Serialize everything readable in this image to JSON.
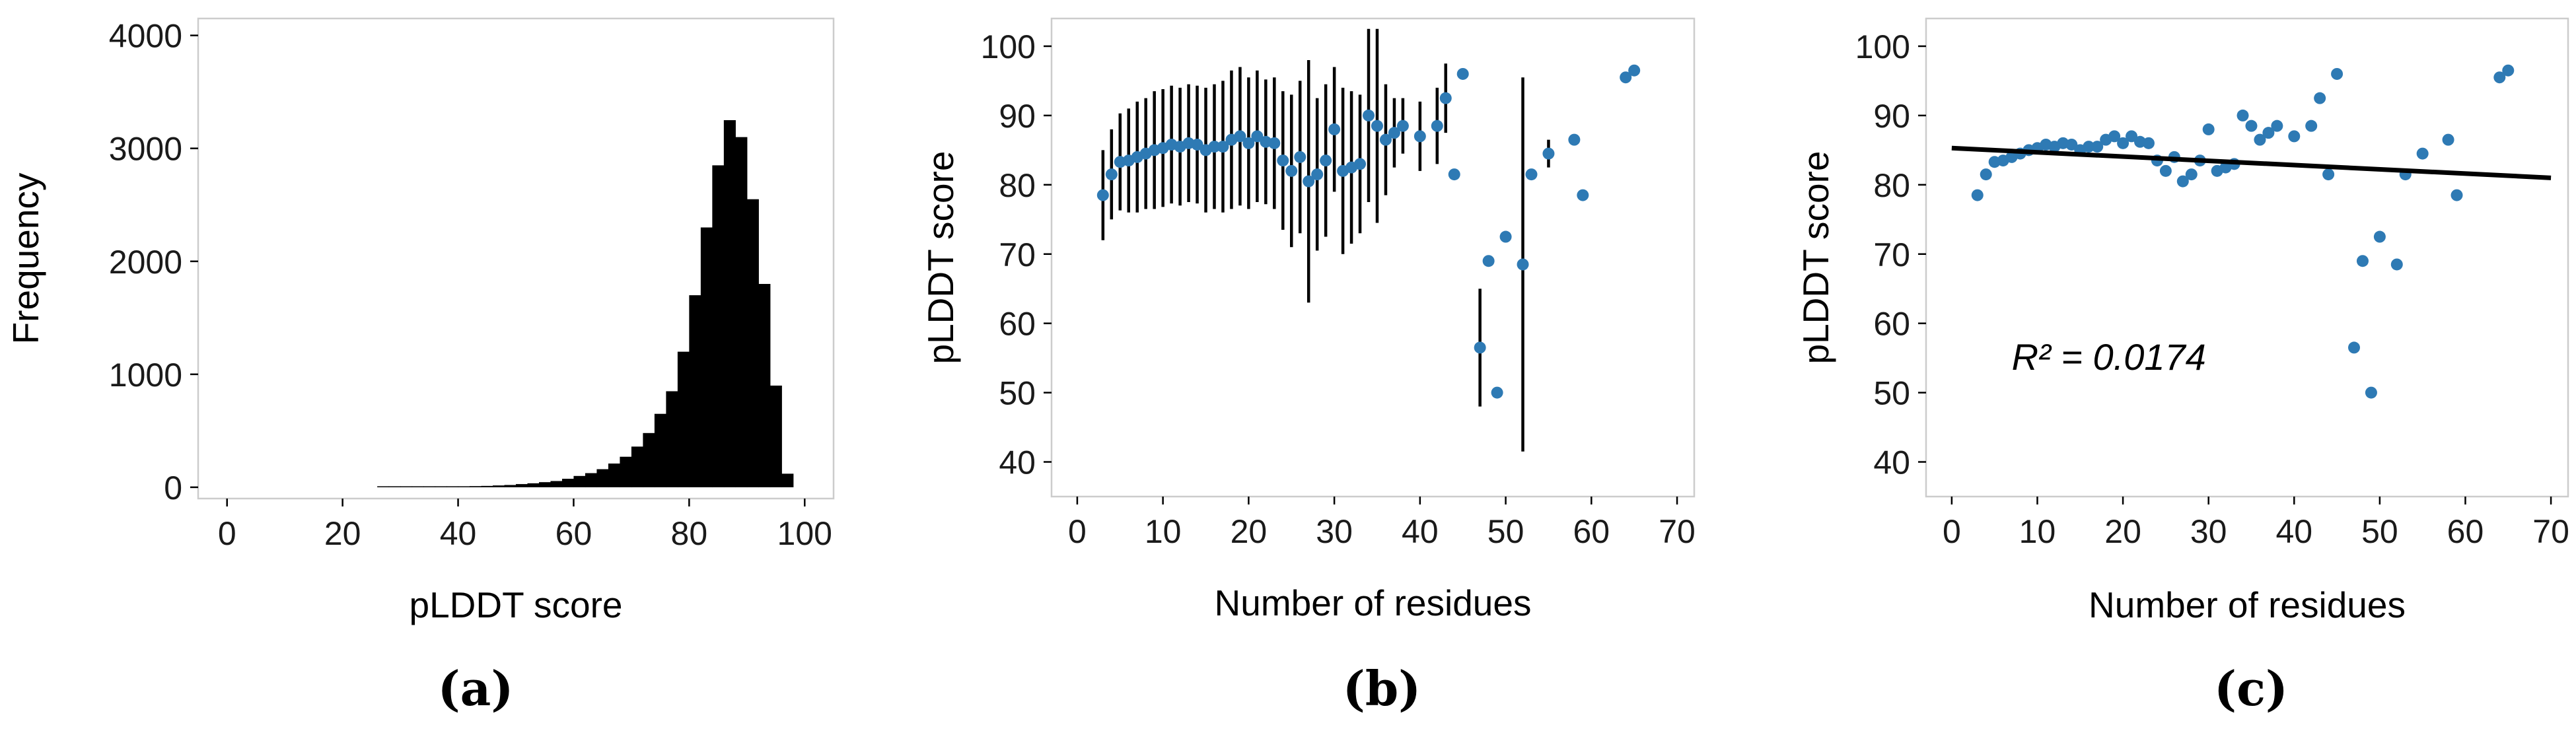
{
  "chart_data": [
    {
      "id": "a",
      "type": "bar",
      "subtype": "histogram",
      "caption": "(a)",
      "xlabel": "pLDDT score",
      "ylabel": "Frequency",
      "xlim": [
        -5,
        105
      ],
      "ylim": [
        -100,
        4150
      ],
      "xticks": [
        0,
        20,
        40,
        60,
        80,
        100
      ],
      "yticks": [
        0,
        1000,
        2000,
        3000,
        4000
      ],
      "bin_width": 2,
      "bins_start": [
        26,
        28,
        30,
        32,
        34,
        36,
        38,
        40,
        42,
        44,
        46,
        48,
        50,
        52,
        54,
        56,
        58,
        60,
        62,
        64,
        66,
        68,
        70,
        72,
        74,
        76,
        78,
        80,
        82,
        84,
        86,
        88,
        90,
        92,
        94,
        96
      ],
      "counts": [
        2,
        3,
        3,
        4,
        4,
        5,
        6,
        8,
        10,
        12,
        16,
        20,
        28,
        35,
        45,
        55,
        75,
        100,
        125,
        160,
        210,
        270,
        360,
        480,
        650,
        850,
        1200,
        1700,
        2300,
        2850,
        3250,
        3100,
        2550,
        1800,
        900,
        120
      ],
      "bar_color": "#000000"
    },
    {
      "id": "b",
      "type": "scatter",
      "subtype": "errorbar",
      "caption": "(b)",
      "xlabel": "Number of residues",
      "ylabel": "pLDDT score",
      "xlim": [
        -3,
        72
      ],
      "ylim": [
        35,
        104
      ],
      "xticks": [
        0,
        10,
        20,
        30,
        40,
        50,
        60,
        70
      ],
      "yticks": [
        40,
        50,
        60,
        70,
        80,
        90,
        100
      ],
      "point_color": "#2e7ab4",
      "points": [
        {
          "x": 3,
          "y": 78.5,
          "err": 6.5
        },
        {
          "x": 4,
          "y": 81.5,
          "err": 6.5
        },
        {
          "x": 5,
          "y": 83.3,
          "err": 7
        },
        {
          "x": 6,
          "y": 83.5,
          "err": 7.5
        },
        {
          "x": 7,
          "y": 84.0,
          "err": 8
        },
        {
          "x": 8,
          "y": 84.5,
          "err": 8
        },
        {
          "x": 9,
          "y": 85.0,
          "err": 8.5
        },
        {
          "x": 10,
          "y": 85.3,
          "err": 8.5
        },
        {
          "x": 11,
          "y": 85.8,
          "err": 8.5
        },
        {
          "x": 12,
          "y": 85.5,
          "err": 8.5
        },
        {
          "x": 13,
          "y": 86.0,
          "err": 8.5
        },
        {
          "x": 14,
          "y": 85.8,
          "err": 8.5
        },
        {
          "x": 15,
          "y": 85.0,
          "err": 9
        },
        {
          "x": 16,
          "y": 85.5,
          "err": 9
        },
        {
          "x": 17,
          "y": 85.5,
          "err": 9.5
        },
        {
          "x": 18,
          "y": 86.5,
          "err": 10
        },
        {
          "x": 19,
          "y": 87.0,
          "err": 10
        },
        {
          "x": 20,
          "y": 86.0,
          "err": 9.5
        },
        {
          "x": 21,
          "y": 87.0,
          "err": 9.5
        },
        {
          "x": 22,
          "y": 86.2,
          "err": 9
        },
        {
          "x": 23,
          "y": 86.0,
          "err": 9.5
        },
        {
          "x": 24,
          "y": 83.5,
          "err": 10
        },
        {
          "x": 25,
          "y": 82.0,
          "err": 11
        },
        {
          "x": 26,
          "y": 84.0,
          "err": 11
        },
        {
          "x": 27,
          "y": 80.5,
          "err": 17.5
        },
        {
          "x": 28,
          "y": 81.5,
          "err": 11
        },
        {
          "x": 29,
          "y": 83.5,
          "err": 11
        },
        {
          "x": 30,
          "y": 88.0,
          "err": 9
        },
        {
          "x": 31,
          "y": 82.0,
          "err": 12
        },
        {
          "x": 32,
          "y": 82.5,
          "err": 11
        },
        {
          "x": 33,
          "y": 83.0,
          "err": 10
        },
        {
          "x": 34,
          "y": 90.0,
          "err": 12.5
        },
        {
          "x": 35,
          "y": 88.5,
          "err": 14
        },
        {
          "x": 36,
          "y": 86.5,
          "err": 8
        },
        {
          "x": 37,
          "y": 87.5,
          "err": 5
        },
        {
          "x": 38,
          "y": 88.5,
          "err": 4
        },
        {
          "x": 40,
          "y": 87.0,
          "err": 5
        },
        {
          "x": 42,
          "y": 88.5,
          "err": 5.5
        },
        {
          "x": 43,
          "y": 92.5,
          "err": 5
        },
        {
          "x": 44,
          "y": 81.5,
          "err": 0
        },
        {
          "x": 45,
          "y": 96.0,
          "err": 0
        },
        {
          "x": 47,
          "y": 56.5,
          "err": 8.5
        },
        {
          "x": 48,
          "y": 69.0,
          "err": 0
        },
        {
          "x": 49,
          "y": 50.0,
          "err": 0
        },
        {
          "x": 50,
          "y": 72.5,
          "err": 0
        },
        {
          "x": 52,
          "y": 68.5,
          "err": 27
        },
        {
          "x": 53,
          "y": 81.5,
          "err": 0
        },
        {
          "x": 55,
          "y": 84.5,
          "err": 2
        },
        {
          "x": 58,
          "y": 86.5,
          "err": 0
        },
        {
          "x": 59,
          "y": 78.5,
          "err": 0
        },
        {
          "x": 64,
          "y": 95.5,
          "err": 0
        },
        {
          "x": 65,
          "y": 96.5,
          "err": 0
        }
      ]
    },
    {
      "id": "c",
      "type": "scatter",
      "subtype": "regression",
      "caption": "(c)",
      "xlabel": "Number of residues",
      "ylabel": "pLDDT score",
      "xlim": [
        -3,
        72
      ],
      "ylim": [
        35,
        104
      ],
      "xticks": [
        0,
        10,
        20,
        30,
        40,
        50,
        60,
        70
      ],
      "yticks": [
        40,
        50,
        60,
        70,
        80,
        90,
        100
      ],
      "point_color": "#2e7ab4",
      "fit_line": {
        "x": [
          0,
          70
        ],
        "y": [
          85.3,
          81.0
        ]
      },
      "annotation": {
        "text": "R² = 0.0174",
        "x": 7,
        "y": 55
      },
      "points": [
        {
          "x": 3,
          "y": 78.5
        },
        {
          "x": 4,
          "y": 81.5
        },
        {
          "x": 5,
          "y": 83.3
        },
        {
          "x": 6,
          "y": 83.5
        },
        {
          "x": 7,
          "y": 84.0
        },
        {
          "x": 8,
          "y": 84.5
        },
        {
          "x": 9,
          "y": 85.0
        },
        {
          "x": 10,
          "y": 85.3
        },
        {
          "x": 11,
          "y": 85.8
        },
        {
          "x": 12,
          "y": 85.5
        },
        {
          "x": 13,
          "y": 86.0
        },
        {
          "x": 14,
          "y": 85.8
        },
        {
          "x": 15,
          "y": 85.0
        },
        {
          "x": 16,
          "y": 85.5
        },
        {
          "x": 17,
          "y": 85.5
        },
        {
          "x": 18,
          "y": 86.5
        },
        {
          "x": 19,
          "y": 87.0
        },
        {
          "x": 20,
          "y": 86.0
        },
        {
          "x": 21,
          "y": 87.0
        },
        {
          "x": 22,
          "y": 86.2
        },
        {
          "x": 23,
          "y": 86.0
        },
        {
          "x": 24,
          "y": 83.5
        },
        {
          "x": 25,
          "y": 82.0
        },
        {
          "x": 26,
          "y": 84.0
        },
        {
          "x": 27,
          "y": 80.5
        },
        {
          "x": 28,
          "y": 81.5
        },
        {
          "x": 29,
          "y": 83.5
        },
        {
          "x": 30,
          "y": 88.0
        },
        {
          "x": 31,
          "y": 82.0
        },
        {
          "x": 32,
          "y": 82.5
        },
        {
          "x": 33,
          "y": 83.0
        },
        {
          "x": 34,
          "y": 90.0
        },
        {
          "x": 35,
          "y": 88.5
        },
        {
          "x": 36,
          "y": 86.5
        },
        {
          "x": 37,
          "y": 87.5
        },
        {
          "x": 38,
          "y": 88.5
        },
        {
          "x": 40,
          "y": 87.0
        },
        {
          "x": 42,
          "y": 88.5
        },
        {
          "x": 43,
          "y": 92.5
        },
        {
          "x": 44,
          "y": 81.5
        },
        {
          "x": 45,
          "y": 96.0
        },
        {
          "x": 47,
          "y": 56.5
        },
        {
          "x": 48,
          "y": 69.0
        },
        {
          "x": 49,
          "y": 50.0
        },
        {
          "x": 50,
          "y": 72.5
        },
        {
          "x": 52,
          "y": 68.5
        },
        {
          "x": 53,
          "y": 81.5
        },
        {
          "x": 55,
          "y": 84.5
        },
        {
          "x": 58,
          "y": 86.5
        },
        {
          "x": 59,
          "y": 78.5
        },
        {
          "x": 64,
          "y": 95.5
        },
        {
          "x": 65,
          "y": 96.5
        }
      ]
    }
  ]
}
